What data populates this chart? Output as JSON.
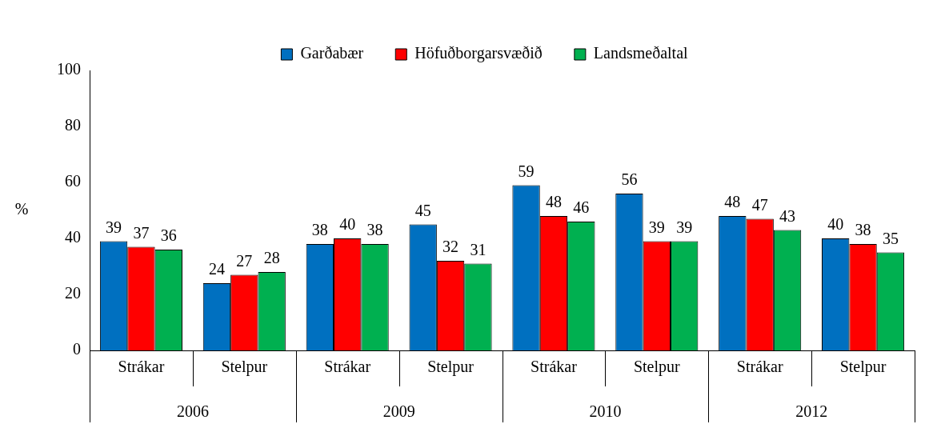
{
  "chart_data": {
    "type": "bar",
    "ylabel": "%",
    "categories": [
      "Strákar",
      "Stelpur",
      "Strákar",
      "Stelpur",
      "Strákar",
      "Stelpur",
      "Strákar",
      "Stelpur"
    ],
    "annotations": [
      "2006",
      "2009",
      "2010",
      "2012"
    ],
    "series": [
      {
        "name": "Garðabær",
        "color": "#0070c0",
        "values": [
          39,
          24,
          38,
          45,
          59,
          56,
          48,
          40
        ]
      },
      {
        "name": "Höfuðborgarsvæðið",
        "color": "#ff0000",
        "values": [
          37,
          27,
          40,
          32,
          48,
          39,
          47,
          38
        ]
      },
      {
        "name": "Landsmeðaltal",
        "color": "#00b050",
        "values": [
          36,
          28,
          38,
          31,
          46,
          39,
          43,
          35
        ]
      }
    ],
    "ylim": [
      0,
      100
    ],
    "yticks": [
      0,
      20,
      40,
      60,
      80,
      100
    ],
    "grid": false,
    "legend": "top",
    "data_labels": true
  }
}
